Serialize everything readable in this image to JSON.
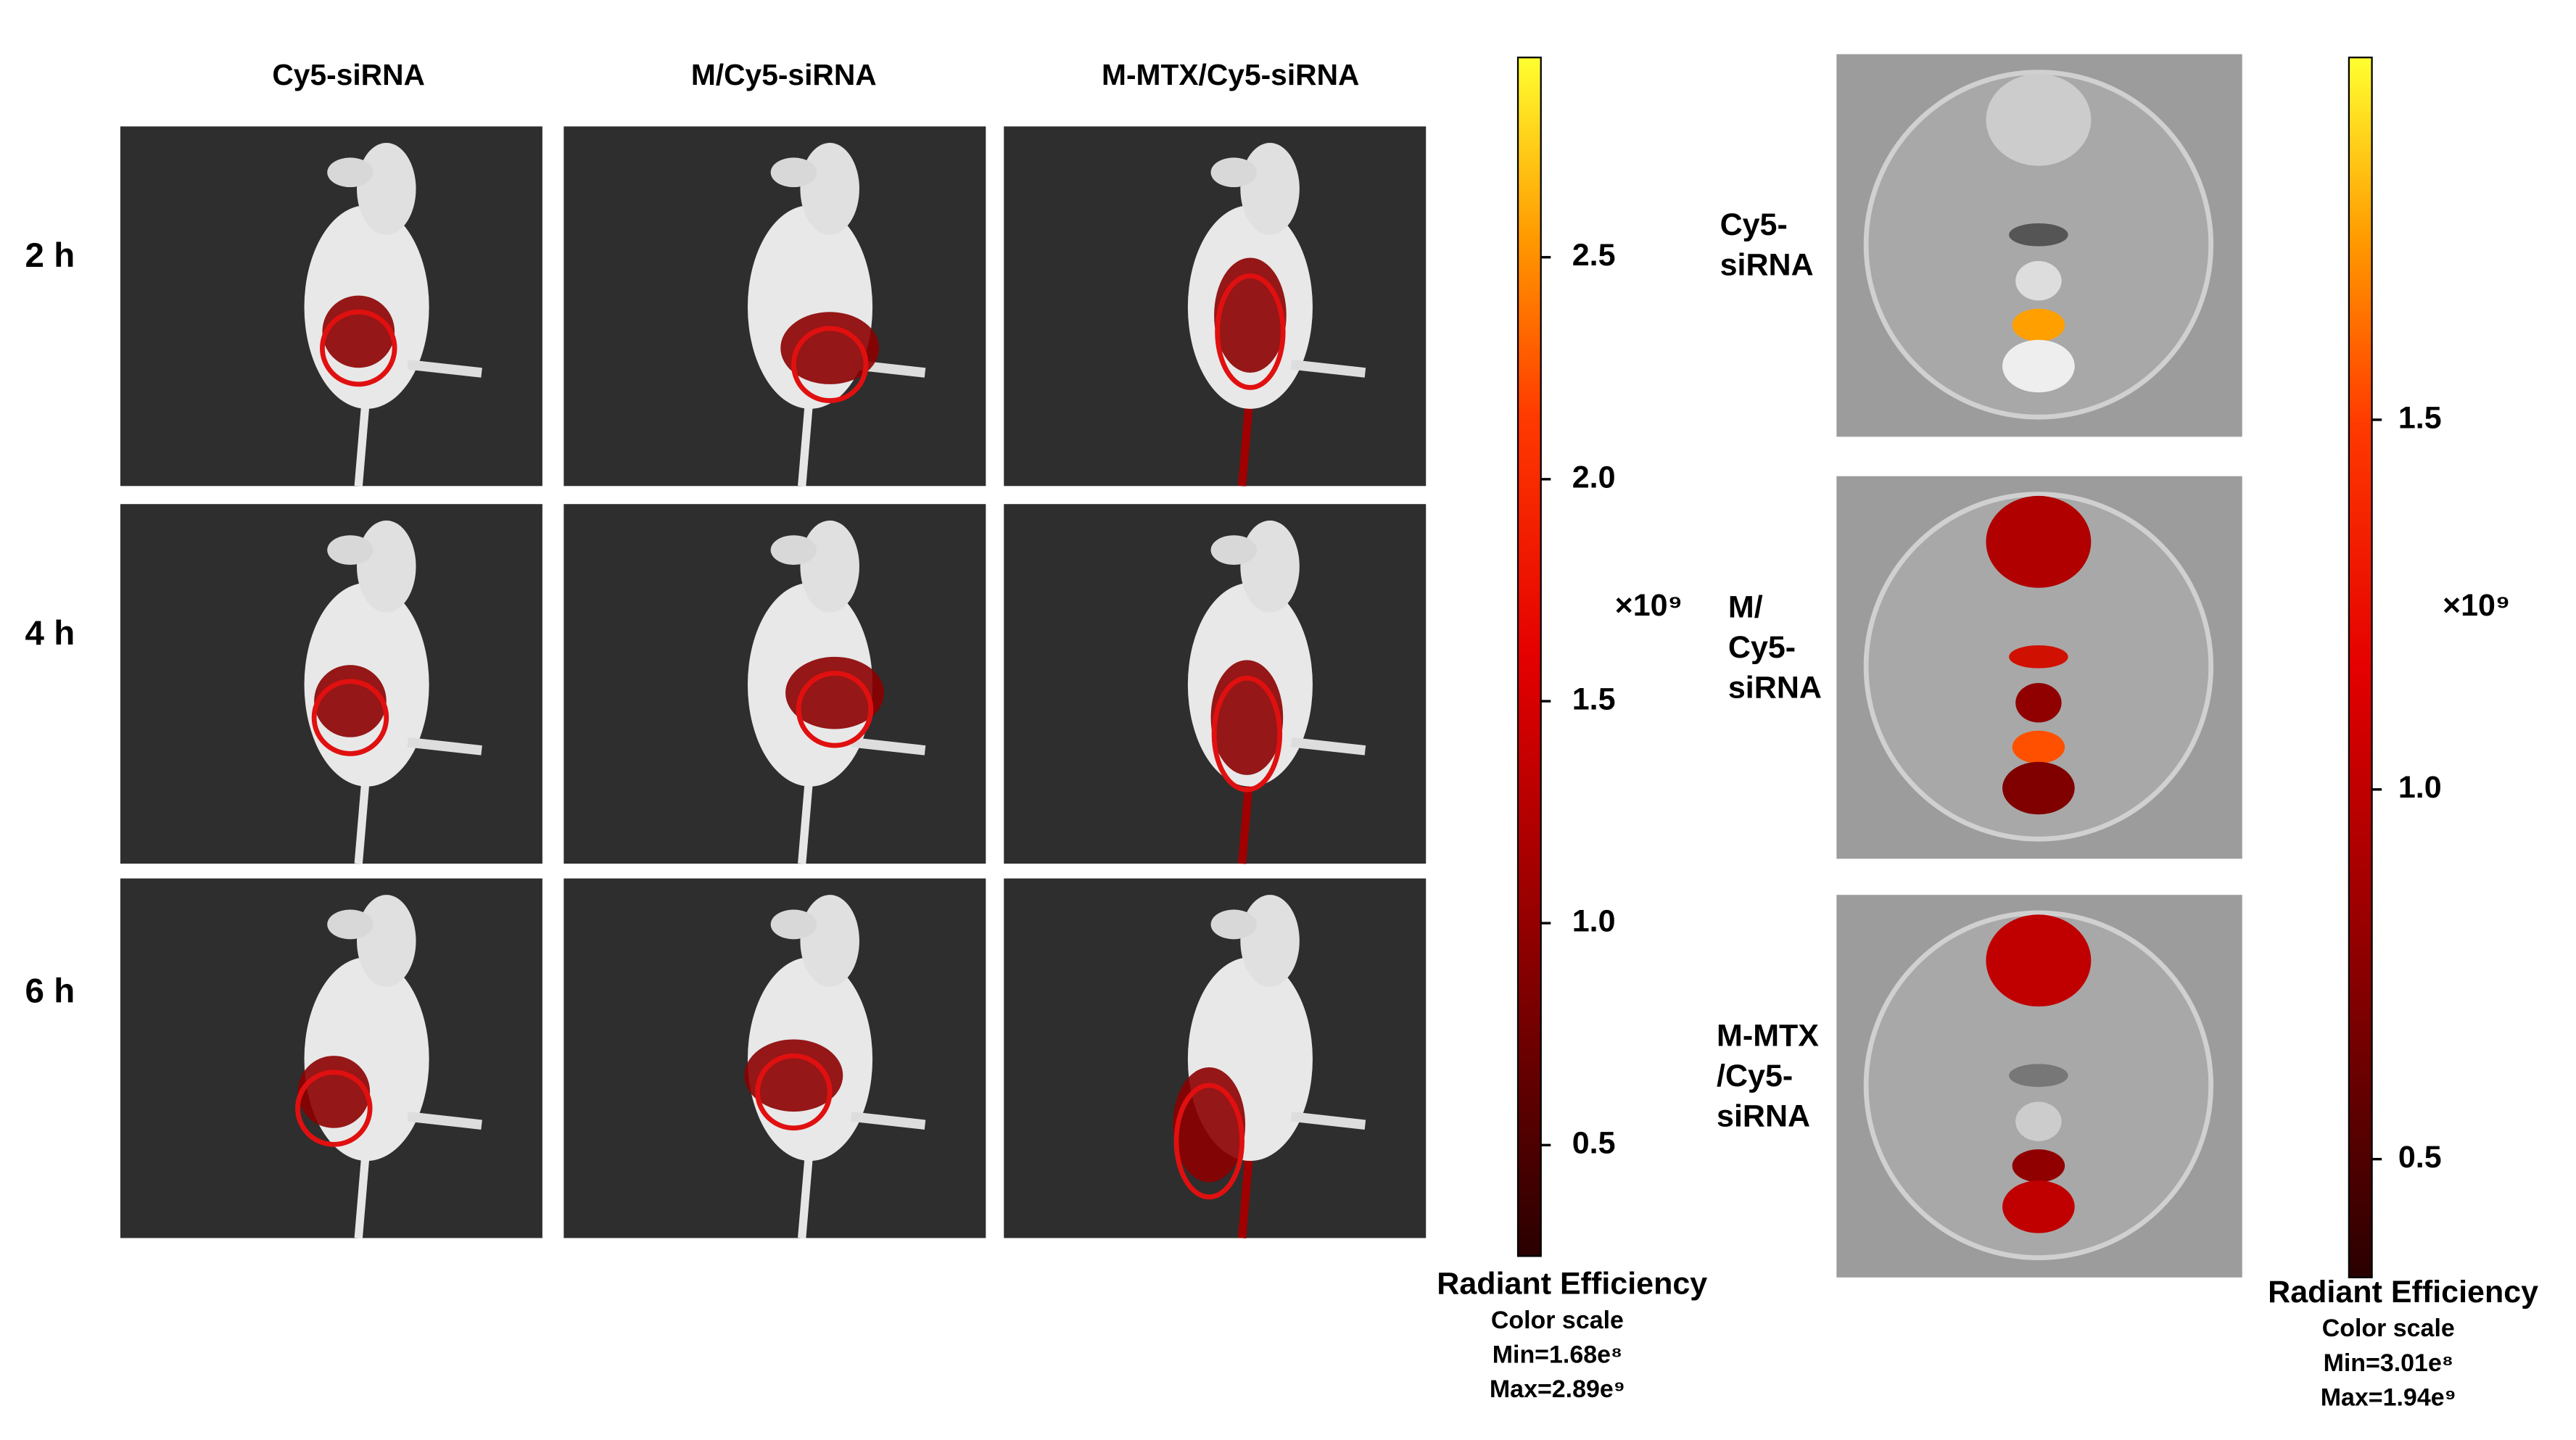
{
  "column_headers": [
    "Cy5-siRNA",
    "M/Cy5-siRNA",
    "M-MTX/Cy5-siRNA"
  ],
  "row_labels": [
    "2 h",
    "4 h",
    "6 h"
  ],
  "organ_labels": [
    [
      "Cy5-",
      "siRNA"
    ],
    [
      "M/",
      "Cy5-",
      "siRNA"
    ],
    [
      "M-MTX",
      "/Cy5-",
      "siRNA"
    ]
  ],
  "colorbars": [
    {
      "lim": [
        0.25,
        2.95
      ],
      "ticks": [
        {
          "value": 2.5,
          "label": "2.5"
        },
        {
          "value": 2,
          "label": "2.0"
        },
        1.5,
        {
          "value": 1,
          "label": "1.0"
        },
        0.5
      ],
      "exponent": "×10⁹",
      "title": "Radiant Efficiency",
      "subtitle": "Color scale",
      "min": "Min=1.68e⁸",
      "max": "Max=2.89e⁹"
    },
    {
      "lim": [
        0.34,
        1.99
      ],
      "ticks": [
        1.5,
        {
          "value": 1,
          "label": "1.0"
        },
        0.5
      ],
      "exponent": "×10⁹",
      "title": "Radiant Efficiency",
      "subtitle": "Color scale",
      "min": "Min=3.01e⁸",
      "max": "Max=1.94e⁹"
    }
  ]
}
